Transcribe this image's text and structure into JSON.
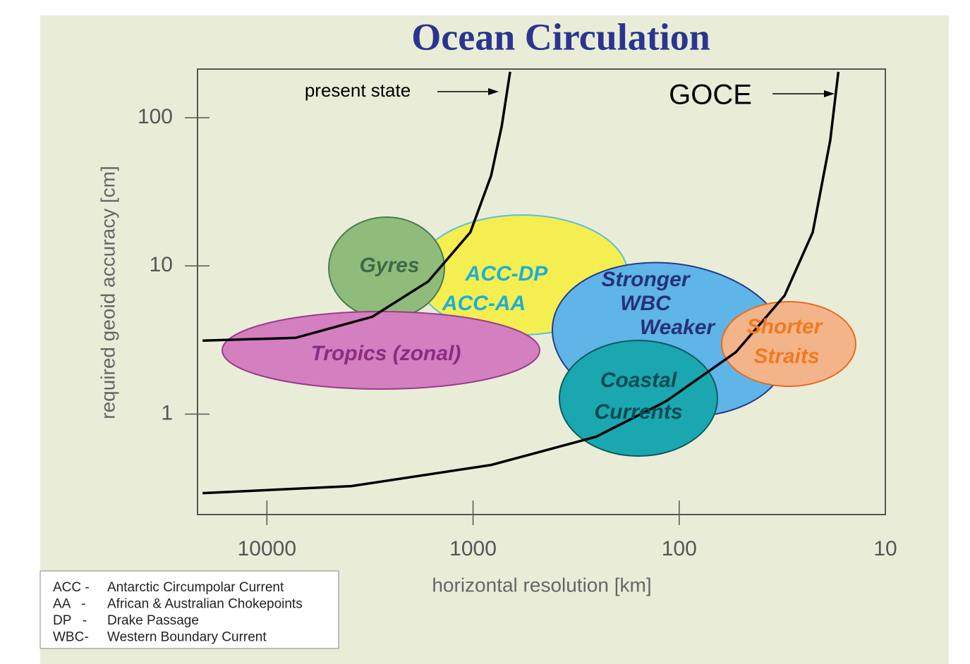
{
  "chart_data": {
    "type": "line",
    "title": "Ocean Circulation",
    "x_label": "horizontal resolution [km]",
    "y_label": "required geoid accuracy [cm]",
    "xscale": "log",
    "yscale": "log",
    "xlim": [
      21700,
      10
    ],
    "ylim": [
      0.21,
      213
    ],
    "xticks": [
      10000,
      1000,
      100,
      10
    ],
    "yticks": [
      1,
      10,
      100
    ],
    "series": [
      {
        "name": "present state",
        "color": "#000000",
        "x": [
          20500,
          7260,
          3080,
          1650,
          1030,
          817,
          726,
          661
        ],
        "values": [
          3.13,
          3.27,
          4.54,
          7.86,
          16.9,
          40.7,
          87.7,
          204
        ]
      },
      {
        "name": "GOCE",
        "color": "#000000",
        "x": [
          20500,
          3890,
          817,
          253,
          116,
          53.1,
          30.8,
          22.5,
          18.5,
          16.9
        ],
        "values": [
          0.293,
          0.327,
          0.454,
          0.704,
          1.22,
          2.62,
          6.31,
          16.9,
          70.5,
          204
        ]
      }
    ],
    "regions": [
      {
        "lines": [
          "ACC-DP",
          "ACC-AA"
        ]
      },
      {
        "lines": [
          "Gyres"
        ]
      },
      {
        "lines": [
          "Tropics (zonal)"
        ]
      },
      {
        "lines": [
          "Stronger",
          "WBC",
          "Weaker"
        ]
      },
      {
        "lines": [
          "Coastal",
          "Currents"
        ]
      },
      {
        "lines": [
          "Shorter",
          "Straits"
        ]
      }
    ],
    "legend": [
      [
        "ACC -",
        "Antarctic Circumpolar Current"
      ],
      [
        "AA   -",
        "African & Australian Chokepoints"
      ],
      [
        "DP   -",
        "Drake Passage"
      ],
      [
        "WBC-",
        "Western Boundary Current"
      ]
    ]
  }
}
